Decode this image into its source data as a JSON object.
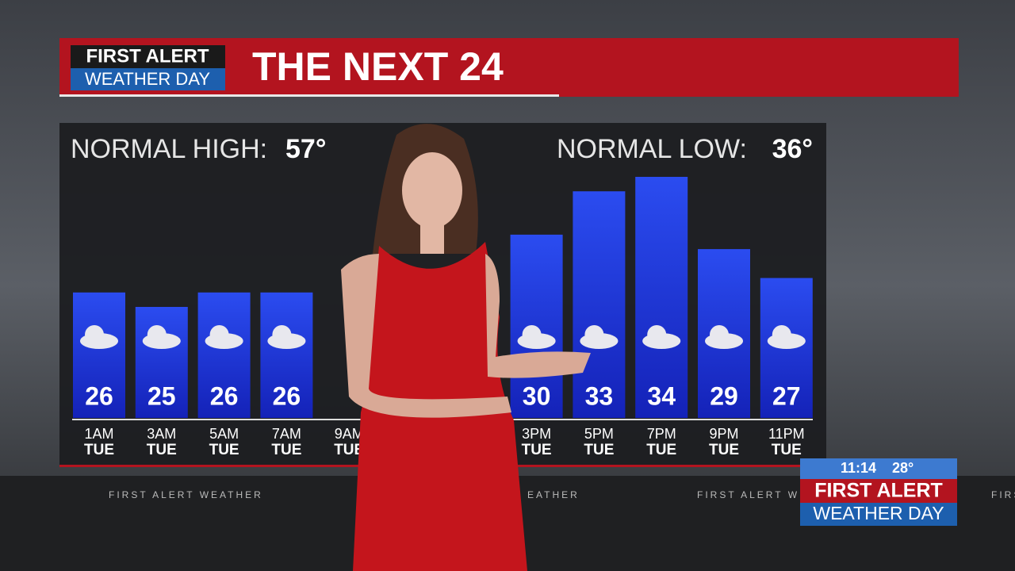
{
  "banner": {
    "brand_top": "FIRST ALERT",
    "brand_bottom": "WEATHER DAY"
  },
  "normal_high": {
    "label": "NORMAL HIGH:",
    "value": "57°"
  },
  "normal_low": {
    "label": "NORMAL LOW:",
    "value": "36°"
  },
  "ticker": [
    "FIRST ALERT WEATHER",
    "EATHER",
    "FIRST ALERT W",
    "FIRS"
  ],
  "bug": {
    "time": "11:14",
    "temperature": "28°",
    "brand_top": "FIRST ALERT",
    "brand_bottom": "WEATHER DAY"
  },
  "chart_data": {
    "type": "bar",
    "title": "THE NEXT 24",
    "categories": [
      "1AM",
      "3AM",
      "5AM",
      "7AM",
      "9AM",
      null,
      null,
      "3PM",
      "5PM",
      "7PM",
      "9PM",
      "11PM"
    ],
    "days": [
      "TUE",
      "TUE",
      "TUE",
      "TUE",
      "TUE",
      null,
      null,
      "TUE",
      "TUE",
      "TUE",
      "TUE",
      "TUE"
    ],
    "values": [
      26,
      25,
      26,
      26,
      null,
      null,
      null,
      30,
      33,
      34,
      29,
      27
    ],
    "color": "#1a2fd6"
  }
}
